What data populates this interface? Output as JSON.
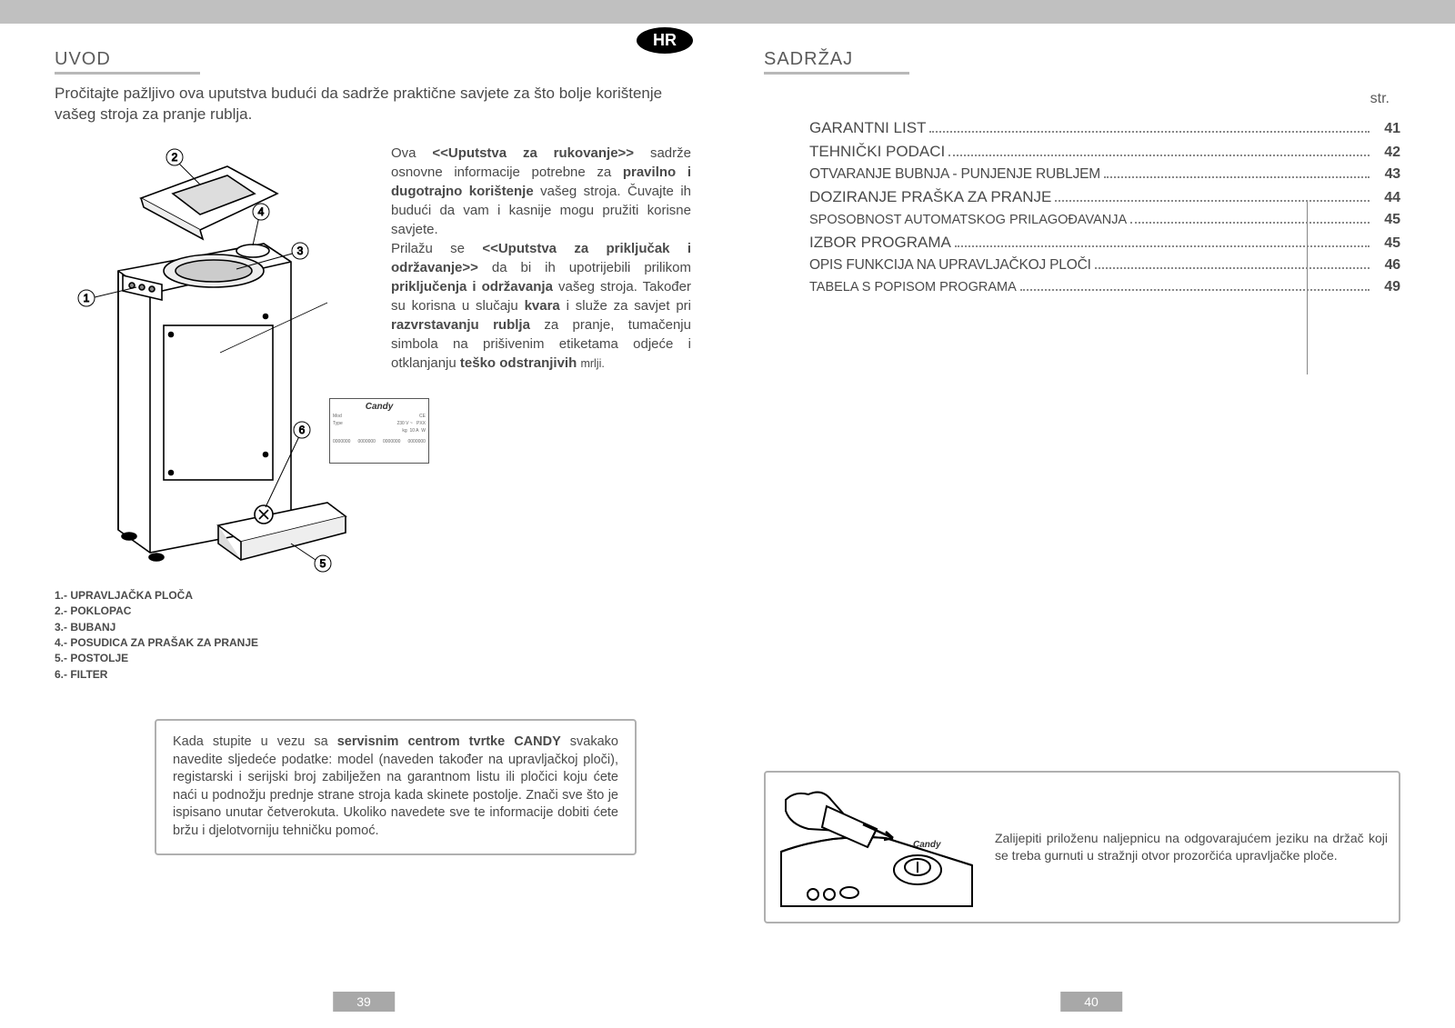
{
  "badge": "HR",
  "left": {
    "title": "UVOD",
    "intro": "Pročitajte pažljivo ova uputstva budući da sadrže praktične savjete za što bolje korištenje vašeg stroja za pranje rublja.",
    "body_html": "Ova <b>&lt;&lt;Uputstva za rukovanje&gt;&gt;</b> sadrže osnovne informacije potrebne za <b>pravilno i dugotrajno korištenje</b> vašeg stroja. Čuvajte ih budući da vam i kasnije mogu pružiti korisne savjete.<br>Prilažu se <b>&lt;&lt;Uputstva za priključak i održavanje&gt;&gt;</b> da bi ih upotrijebili prilikom <b>priključenja i održavanja</b> vašeg stroja. Također su korisna u slučaju <b>kvara</b> i služe za savjet pri <b>razvrstavanju rublja</b> za pranje, tumačenju simbola na prišivenim etiketama odjeće i otklanjanju <b>teško odstranjivih</b> <small>mrlji.</small>",
    "legend": [
      "1.- UPRAVLJAČKA PLOČA",
      "2.- POKLOPAC",
      "3.- BUBANJ",
      "4.- POSUDICA ZA PRAŠAK ZA PRANJE",
      "5.- POSTOLJE",
      "6.- FILTER"
    ],
    "callouts": [
      "1",
      "2",
      "3",
      "4",
      "5",
      "6"
    ],
    "info_box_html": "Kada stupite u vezu sa <b>servisnim centrom tvrtke CANDY</b> svakako navedite sljedeće podatke: model (naveden također na upravljačkoj ploči), registarski i serijski broj zabilježen na garantnom listu ili pločici koju ćete naći u podnožju prednje strane stroja kada skinete postolje. Znači sve što je ispisano unutar četverokuta. Ukoliko navedete sve te informacije dobiti ćete bržu i djelotvorniju tehničku pomoć.",
    "page_num": "39",
    "rating_brand": "Candy"
  },
  "right": {
    "title": "SADRŽAJ",
    "str": "str.",
    "toc": [
      {
        "label": "GARANTNI LIST",
        "pg": "41",
        "cls": ""
      },
      {
        "label": "TEHNIČKI PODACI",
        "pg": "42",
        "cls": ""
      },
      {
        "label": "OTVARANJE BUBNJA - PUNJENJE RUBLJEM",
        "pg": "43",
        "cls": "toc-cond"
      },
      {
        "label": "DOZIRANJE PRAŠKA ZA PRANJE",
        "pg": "44",
        "cls": ""
      },
      {
        "label": "SPOSOBNOST AUTOMATSKOG PRILAGOĐAVANJA",
        "pg": "45",
        "cls": "toc-small"
      },
      {
        "label": "IZBOR PROGRAMA",
        "pg": "45",
        "cls": ""
      },
      {
        "label": "OPIS FUNKCIJA NA UPRAVLJAČKOJ PLOČI",
        "pg": "46",
        "cls": "toc-cond"
      },
      {
        "label": "TABELA S POPISOM PROGRAMA",
        "pg": "49",
        "cls": "toc-small"
      }
    ],
    "sticker_text": "Zalijepiti priloženu naljepnicu na odgovarajućem jeziku na držač koji se treba gurnuti u stražnji otvor prozorčića upravljačke ploče.",
    "page_num": "40"
  },
  "colors": {
    "bar": "#c0c0c0",
    "text": "#4a4a4a",
    "title": "#5a5a5a",
    "border": "#b0b0b0"
  }
}
